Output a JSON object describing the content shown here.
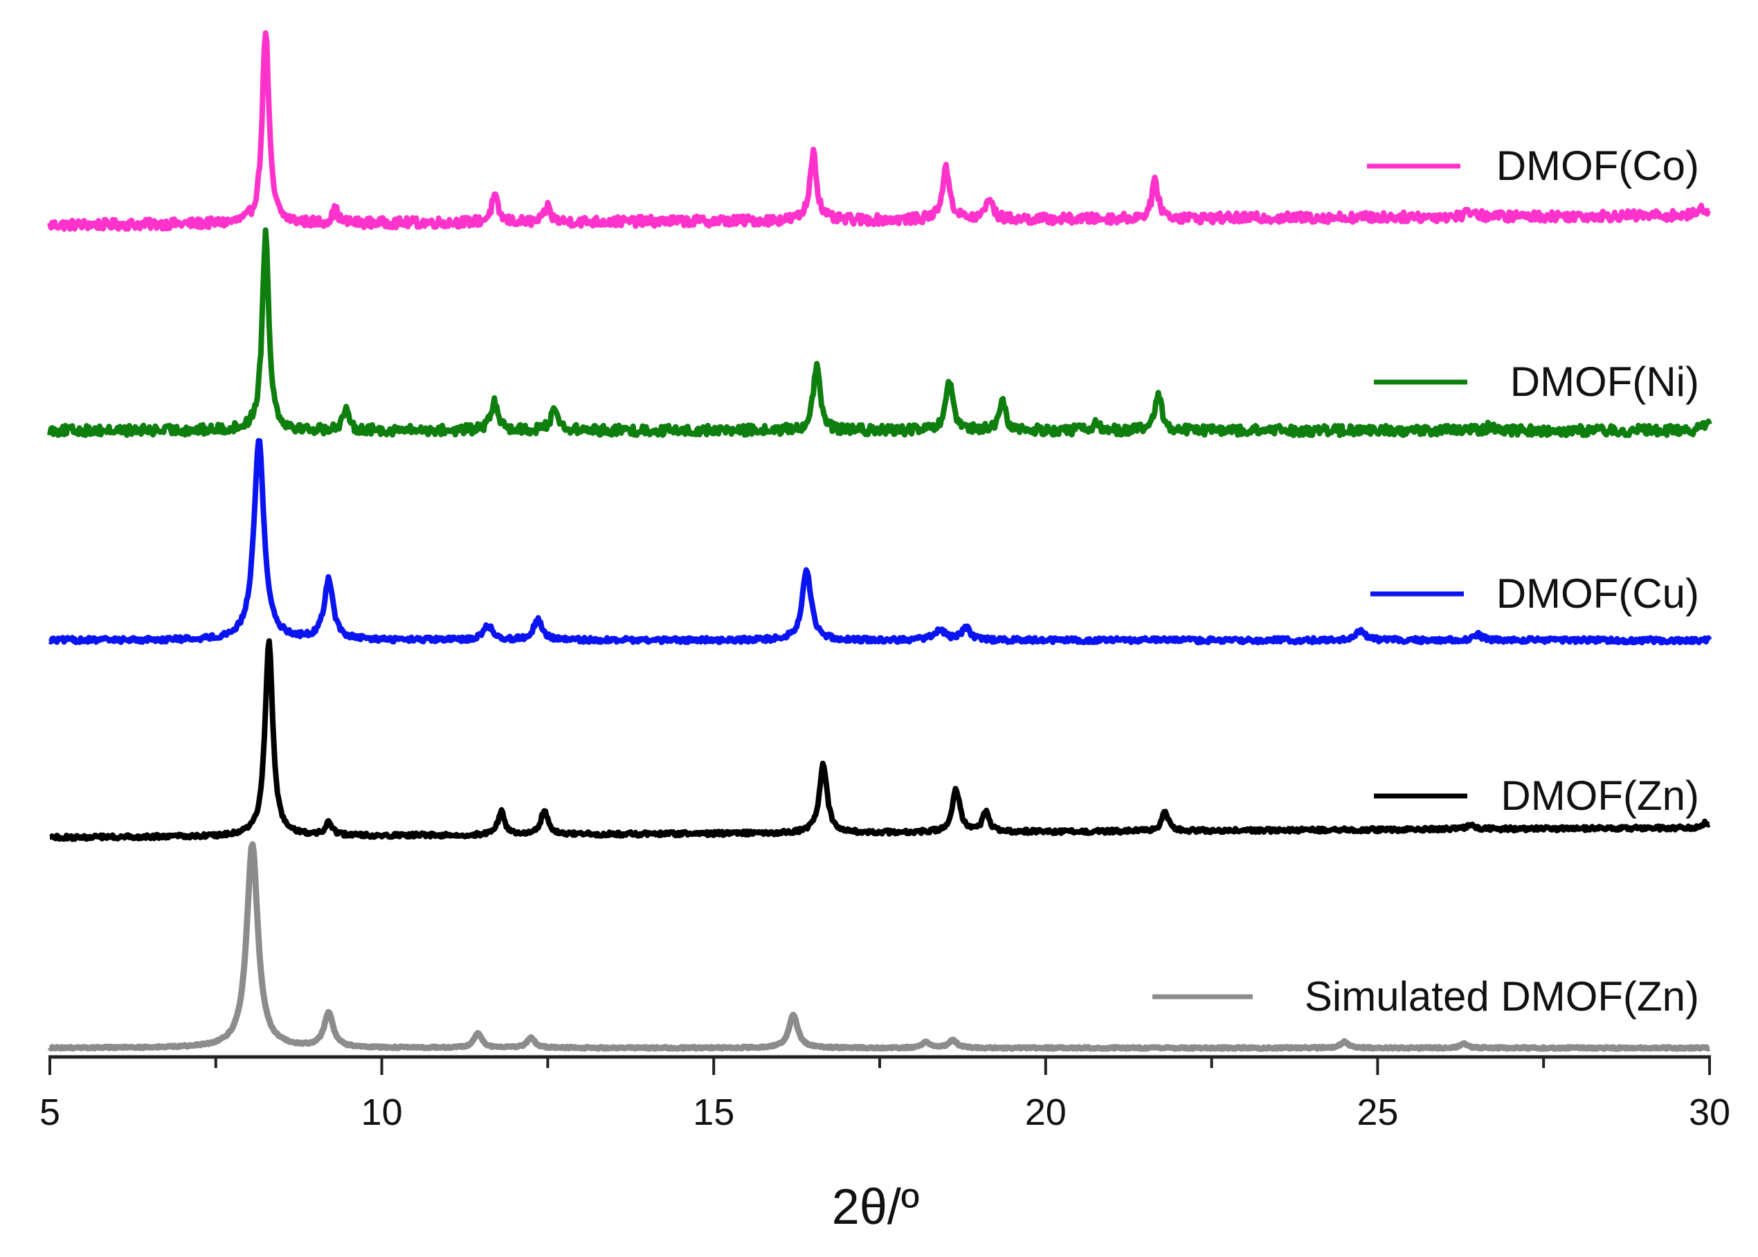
{
  "chart_data": {
    "type": "line",
    "title": "",
    "xlabel": "2θ/º",
    "ylabel": "",
    "xlim": [
      5,
      30
    ],
    "xticks": [
      5,
      10,
      15,
      20,
      25,
      30
    ],
    "xtick_labels": [
      "5",
      "10",
      "15",
      "20",
      "25",
      "30"
    ],
    "grid": false,
    "legend_placement": "right, beside each curve",
    "stacked_offsets": true,
    "series": [
      {
        "name": "DMOF(Co)",
        "color": "#ff33cc",
        "offset": 4,
        "baseline_drift": -0.05,
        "noise": 0.025,
        "peaks": [
          {
            "x": 8.25,
            "height": 1.0,
            "width": 0.06
          },
          {
            "x": 9.3,
            "height": 0.07,
            "width": 0.05
          },
          {
            "x": 11.7,
            "height": 0.13,
            "width": 0.06
          },
          {
            "x": 12.5,
            "height": 0.08,
            "width": 0.05
          },
          {
            "x": 16.5,
            "height": 0.36,
            "width": 0.06
          },
          {
            "x": 18.5,
            "height": 0.26,
            "width": 0.07
          },
          {
            "x": 19.15,
            "height": 0.11,
            "width": 0.06
          },
          {
            "x": 21.65,
            "height": 0.19,
            "width": 0.06
          },
          {
            "x": 26.4,
            "height": 0.03,
            "width": 0.08
          },
          {
            "x": 29.9,
            "height": 0.04,
            "width": 0.06
          }
        ]
      },
      {
        "name": "DMOF(Ni)",
        "color": "#0e7f0e",
        "offset": 3,
        "baseline_drift": 0.0,
        "noise": 0.025,
        "peaks": [
          {
            "x": 8.25,
            "height": 1.0,
            "width": 0.06
          },
          {
            "x": 9.45,
            "height": 0.1,
            "width": 0.06
          },
          {
            "x": 11.7,
            "height": 0.14,
            "width": 0.07
          },
          {
            "x": 12.6,
            "height": 0.12,
            "width": 0.06
          },
          {
            "x": 16.55,
            "height": 0.33,
            "width": 0.06
          },
          {
            "x": 18.55,
            "height": 0.25,
            "width": 0.06
          },
          {
            "x": 19.35,
            "height": 0.14,
            "width": 0.06
          },
          {
            "x": 20.75,
            "height": 0.03,
            "width": 0.08
          },
          {
            "x": 21.7,
            "height": 0.18,
            "width": 0.06
          },
          {
            "x": 26.7,
            "height": 0.02,
            "width": 0.1
          },
          {
            "x": 29.95,
            "height": 0.04,
            "width": 0.06
          }
        ]
      },
      {
        "name": "DMOF(Cu)",
        "color": "#0a14f0",
        "offset": 2,
        "baseline_drift": 0.0,
        "noise": 0.012,
        "peaks": [
          {
            "x": 8.15,
            "height": 1.0,
            "width": 0.09
          },
          {
            "x": 9.2,
            "height": 0.3,
            "width": 0.08
          },
          {
            "x": 11.6,
            "height": 0.07,
            "width": 0.09
          },
          {
            "x": 12.35,
            "height": 0.1,
            "width": 0.08
          },
          {
            "x": 16.4,
            "height": 0.35,
            "width": 0.08
          },
          {
            "x": 18.4,
            "height": 0.05,
            "width": 0.1
          },
          {
            "x": 18.8,
            "height": 0.06,
            "width": 0.08
          },
          {
            "x": 24.75,
            "height": 0.05,
            "width": 0.08
          },
          {
            "x": 26.5,
            "height": 0.03,
            "width": 0.08
          }
        ]
      },
      {
        "name": "DMOF(Zn)",
        "color": "#000000",
        "offset": 1,
        "baseline_drift": -0.05,
        "noise": 0.01,
        "peaks": [
          {
            "x": 8.3,
            "height": 1.0,
            "width": 0.07
          },
          {
            "x": 9.2,
            "height": 0.07,
            "width": 0.06
          },
          {
            "x": 11.8,
            "height": 0.12,
            "width": 0.06
          },
          {
            "x": 12.45,
            "height": 0.13,
            "width": 0.06
          },
          {
            "x": 16.65,
            "height": 0.35,
            "width": 0.07
          },
          {
            "x": 18.65,
            "height": 0.22,
            "width": 0.07
          },
          {
            "x": 19.1,
            "height": 0.1,
            "width": 0.06
          },
          {
            "x": 21.8,
            "height": 0.1,
            "width": 0.06
          },
          {
            "x": 26.4,
            "height": 0.02,
            "width": 0.08
          },
          {
            "x": 29.95,
            "height": 0.03,
            "width": 0.06
          }
        ]
      },
      {
        "name": "Simulated DMOF(Zn)",
        "color": "#8c8c8c",
        "offset": 0,
        "baseline_drift": 0.0,
        "noise": 0.004,
        "peaks": [
          {
            "x": 8.05,
            "height": 1.0,
            "width": 0.1
          },
          {
            "x": 9.2,
            "height": 0.17,
            "width": 0.08
          },
          {
            "x": 11.45,
            "height": 0.07,
            "width": 0.07
          },
          {
            "x": 12.25,
            "height": 0.05,
            "width": 0.07
          },
          {
            "x": 16.2,
            "height": 0.16,
            "width": 0.08
          },
          {
            "x": 18.2,
            "height": 0.03,
            "width": 0.07
          },
          {
            "x": 18.6,
            "height": 0.04,
            "width": 0.07
          },
          {
            "x": 24.5,
            "height": 0.03,
            "width": 0.07
          },
          {
            "x": 26.3,
            "height": 0.02,
            "width": 0.07
          }
        ]
      }
    ]
  }
}
